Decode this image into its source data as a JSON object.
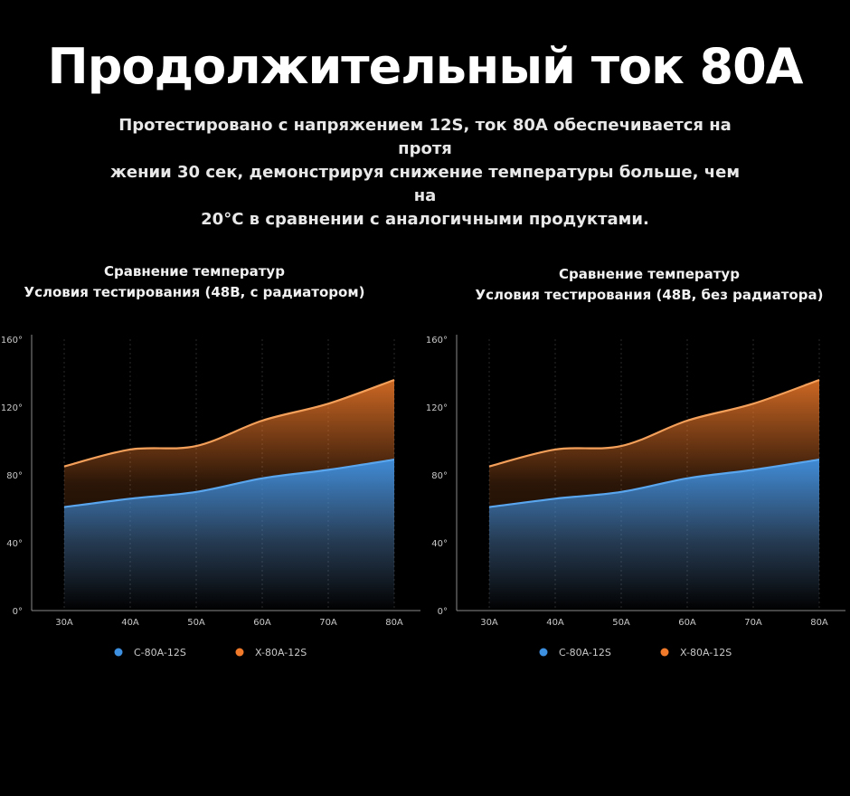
{
  "header": {
    "title": "Продолжительный ток 80А",
    "subtitle_lines": [
      "Протестировано с напряжением 12S, ток 80А обеспечивается на протя",
      "жении 30 сек, демонстрируя снижение температуры больше, чем на",
      "20°C в сравнении с аналогичными продуктами."
    ]
  },
  "colors": {
    "background": "#000000",
    "c_series": "#3d8fe0",
    "x_series": "#f07a2a",
    "x_series_line": "#f5a05a",
    "axis": "#8a8a8a",
    "label": "#c8c8c8"
  },
  "chart_data": [
    {
      "type": "area",
      "title_lines": [
        "Сравнение температур",
        "Условия тестирования (48В, с радиатором)"
      ],
      "categories": [
        "30A",
        "40A",
        "50A",
        "60A",
        "70A",
        "80A"
      ],
      "yticks": [
        "0°",
        "40°",
        "80°",
        "120°",
        "160°"
      ],
      "ylim": [
        0,
        160
      ],
      "grid": true,
      "legend_position": "bottom",
      "series": [
        {
          "name": "C-80A-12S",
          "values": [
            61,
            66,
            70,
            78,
            83,
            89
          ],
          "color": "#3d8fe0"
        },
        {
          "name": "X-80A-12S",
          "values": [
            85,
            95,
            97,
            112,
            122,
            136
          ],
          "color": "#f07a2a"
        }
      ]
    },
    {
      "type": "area",
      "title_lines": [
        "Сравнение температур",
        "Условия тестирования (48В, без радиатора)"
      ],
      "categories": [
        "30A",
        "40A",
        "50A",
        "60A",
        "70A",
        "80A"
      ],
      "yticks": [
        "0°",
        "40°",
        "80°",
        "120°",
        "160°"
      ],
      "ylim": [
        0,
        160
      ],
      "grid": true,
      "legend_position": "bottom",
      "series": [
        {
          "name": "C-80A-12S",
          "values": [
            61,
            66,
            70,
            78,
            83,
            89
          ],
          "color": "#3d8fe0"
        },
        {
          "name": "X-80A-12S",
          "values": [
            85,
            95,
            97,
            112,
            122,
            136
          ],
          "color": "#f07a2a"
        }
      ]
    }
  ]
}
